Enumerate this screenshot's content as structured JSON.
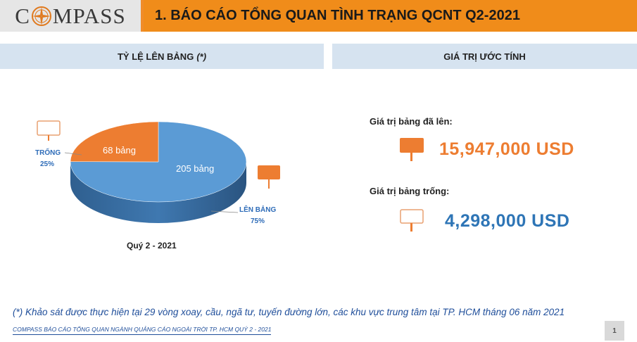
{
  "logo": {
    "text_before": "C",
    "text_after": "MPASS"
  },
  "header": {
    "title": "1. BÁO CÁO TỔNG QUAN TÌNH TRẠNG QCNT Q2-2021"
  },
  "sections": {
    "left_title": "TỶ LỆ LÊN BẢNG",
    "left_title_suffix": "(*)",
    "right_title": "GIÁ TRỊ ƯỚC TÍNH"
  },
  "chart_data": {
    "type": "pie",
    "title": "",
    "caption": "Quý 2 - 2021",
    "slices": [
      {
        "category": "LÊN BẢNG",
        "value": 205,
        "value_label": "205 bảng",
        "percent_label": "75%",
        "color": "#5b9bd5"
      },
      {
        "category": "TRỐNG",
        "value": 68,
        "value_label": "68 bảng",
        "percent_label": "25%",
        "color": "#ed7d31"
      }
    ]
  },
  "estimates": {
    "occupied_label": "Giá trị bảng đã lên:",
    "occupied_value": "15,947,000  USD",
    "occupied_color": "#ed7d31",
    "empty_label": "Giá trị bảng trống:",
    "empty_value": "4,298,000  USD",
    "empty_color": "#2e75b6"
  },
  "footer": {
    "note": "(*) Khảo sát được thực hiện tại 29 vòng xoay, cầu, ngã tư, tuyến đường lớn, các khu vực trung tâm tại TP. HCM tháng 06 năm 2021",
    "source": "COMPASS BÁO CÁO TỔNG QUAN NGÀNH QUẢNG CÁO NGOÀI TRỜI TP. HCM QUÝ 2 - 2021",
    "page_number": "1"
  }
}
